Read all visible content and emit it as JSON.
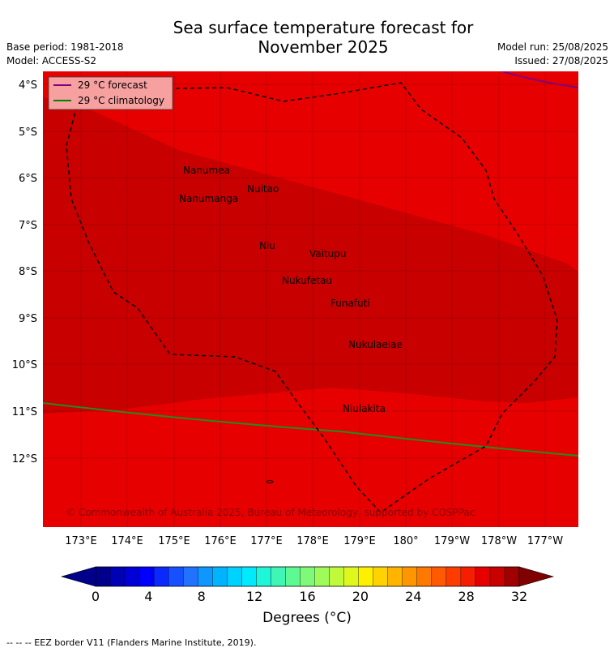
{
  "title": {
    "line1": "Sea surface temperature forecast for",
    "line2": "November 2025"
  },
  "meta": {
    "base_period": "Base period: 1981-2018",
    "model": "Model: ACCESS-S2",
    "model_run": "Model run: 25/08/2025",
    "issued": "Issued: 27/08/2025"
  },
  "legend": {
    "items": [
      {
        "label": "29 °C  forecast",
        "color": "#800080"
      },
      {
        "label": "29 °C  climatology",
        "color": "#008000"
      }
    ]
  },
  "axes": {
    "x_ticks": [
      "173°E",
      "174°E",
      "175°E",
      "176°E",
      "177°E",
      "178°E",
      "179°E",
      "180°",
      "179°W",
      "178°W",
      "177°W"
    ],
    "y_ticks": [
      "4°S",
      "5°S",
      "6°S",
      "7°S",
      "8°S",
      "9°S",
      "10°S",
      "11°S",
      "12°S"
    ]
  },
  "places": [
    "Nanumea",
    "Nuitao",
    "Nanumanga",
    "Niu",
    "Vaitupu",
    "Nukufetau",
    "Funafuti",
    "Nukulaelae",
    "Niulakita"
  ],
  "copyright": "© Commonwealth of Australia 2025, Bureau of Meteorology, supported by COSPPac",
  "colorbar": {
    "ticks": [
      "0",
      "4",
      "8",
      "12",
      "16",
      "20",
      "24",
      "28",
      "32"
    ],
    "label": "Degrees (°C)",
    "colors": [
      "#00008b",
      "#0000b4",
      "#0000d7",
      "#0000ff",
      "#0b29ff",
      "#1650ff",
      "#2173ff",
      "#0f96ff",
      "#00b3ff",
      "#00d2ff",
      "#00eaff",
      "#1ff5d7",
      "#3ff6b4",
      "#5ff994",
      "#7ffa78",
      "#9ffb5a",
      "#bffa3b",
      "#dff71c",
      "#fff000",
      "#ffd200",
      "#ffb400",
      "#ff9600",
      "#ff7800",
      "#ff5a00",
      "#ff3c00",
      "#f51e00",
      "#e60000",
      "#c80000",
      "#a00000"
    ],
    "under_color": "#00008b",
    "over_color": "#800000"
  },
  "colors": {
    "sst_29_30": "#e60000",
    "sst_30_31": "#c80000"
  },
  "footer": "--  --  -- EEZ border V11 (Flanders Marine Institute, 2019)."
}
